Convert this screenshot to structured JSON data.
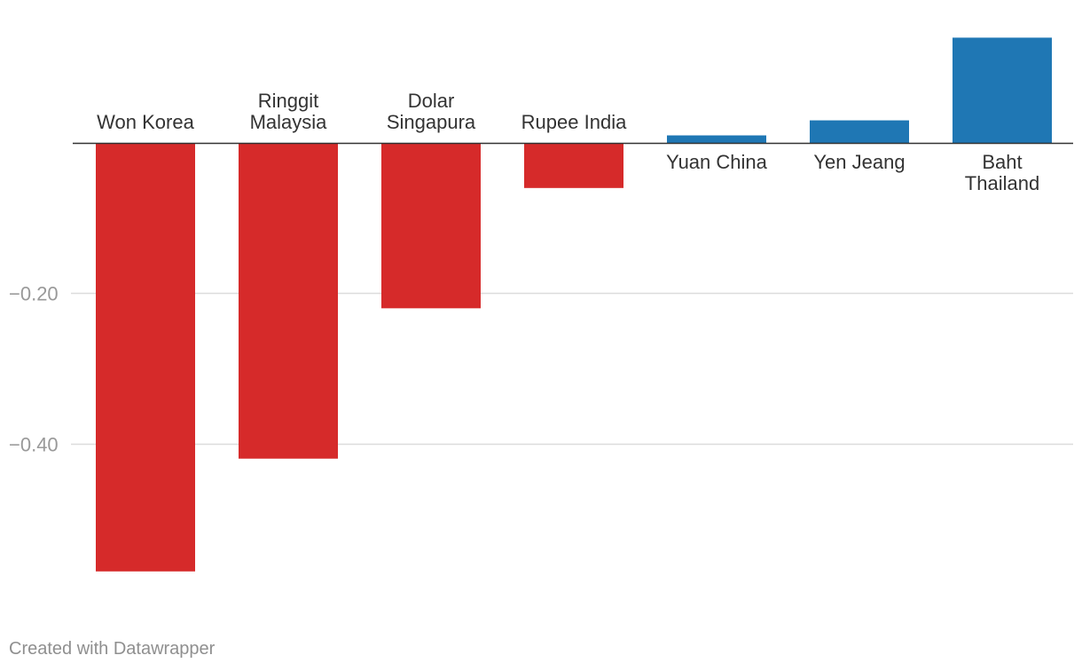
{
  "chart_data": {
    "type": "bar",
    "categories": [
      [
        "Won Korea"
      ],
      [
        "Ringgit",
        "Malaysia"
      ],
      [
        "Dolar",
        "Singapura"
      ],
      [
        "Rupee India"
      ],
      [
        "Yuan China"
      ],
      [
        "Yen Jeang"
      ],
      [
        "Baht",
        "Thailand"
      ]
    ],
    "values": [
      -0.57,
      -0.42,
      -0.22,
      -0.06,
      0.01,
      0.03,
      0.14
    ],
    "y_ticks": [
      {
        "value": -0.2,
        "label": "−0.20"
      },
      {
        "value": -0.4,
        "label": "−0.40"
      }
    ],
    "ylim": [
      -0.62,
      0.16
    ],
    "colors": {
      "negative": "#d62a2a",
      "positive": "#1f77b4",
      "grid": "#dcdcdc",
      "baseline": "#333333",
      "category_label": "#333333",
      "tick_label": "#999999"
    },
    "grid": true,
    "title": "",
    "xlabel": "",
    "ylabel": ""
  },
  "footer": {
    "credit": "Created with Datawrapper"
  }
}
